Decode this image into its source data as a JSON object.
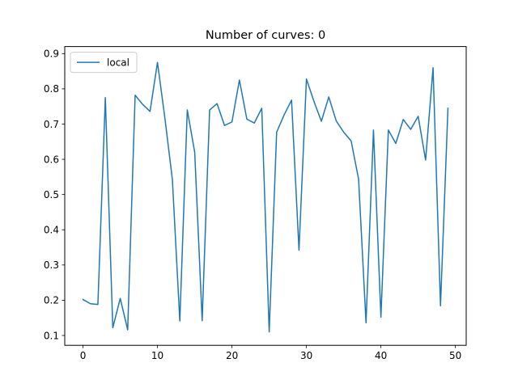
{
  "chart_data": {
    "type": "line",
    "title": "Number of curves: 0",
    "xlabel": "",
    "ylabel": "",
    "xlim": [
      -2.45,
      51.45
    ],
    "ylim": [
      0.072,
      0.92
    ],
    "xticks": [
      0,
      10,
      20,
      30,
      40,
      50
    ],
    "yticks": [
      0.1,
      0.2,
      0.3,
      0.4,
      0.5,
      0.6,
      0.7,
      0.8,
      0.9
    ],
    "legend_position": "upper-left",
    "grid": false,
    "series": [
      {
        "name": "local",
        "color": "#1f77b4",
        "x": [
          0,
          1,
          2,
          3,
          4,
          5,
          6,
          7,
          8,
          9,
          10,
          11,
          12,
          13,
          14,
          15,
          16,
          17,
          18,
          19,
          20,
          21,
          22,
          23,
          24,
          25,
          26,
          27,
          28,
          29,
          30,
          31,
          32,
          33,
          34,
          35,
          36,
          37,
          38,
          39,
          40,
          41,
          42,
          43,
          44,
          45,
          46,
          47,
          48,
          49
        ],
        "values": [
          0.202,
          0.19,
          0.188,
          0.775,
          0.122,
          0.205,
          0.116,
          0.782,
          0.756,
          0.736,
          0.875,
          0.716,
          0.543,
          0.141,
          0.74,
          0.62,
          0.142,
          0.74,
          0.758,
          0.696,
          0.706,
          0.825,
          0.714,
          0.703,
          0.745,
          0.11,
          0.677,
          0.726,
          0.768,
          0.342,
          0.828,
          0.765,
          0.708,
          0.777,
          0.709,
          0.677,
          0.652,
          0.544,
          0.136,
          0.683,
          0.152,
          0.683,
          0.645,
          0.713,
          0.685,
          0.722,
          0.598,
          0.86,
          0.184,
          0.745
        ]
      }
    ]
  }
}
